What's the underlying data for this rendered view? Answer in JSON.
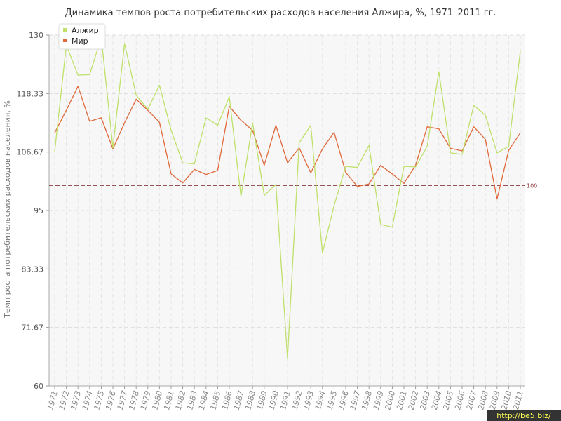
{
  "chart_data": {
    "type": "line",
    "title": "Динамика темпов роста потребительских расходов населения Алжира, %, 1971–2011 гг.",
    "ylabel": "Темп роста потребительских расходов населения, %",
    "xlabel": "",
    "ylim": [
      60,
      130
    ],
    "yticks": [
      "130",
      "118.33",
      "106.67",
      "95",
      "83.33",
      "71.67",
      "60"
    ],
    "ytick_values": [
      130,
      118.33,
      106.67,
      95,
      83.33,
      71.67,
      60
    ],
    "x": [
      "1971",
      "1972",
      "1973",
      "1974",
      "1975",
      "1976",
      "1977",
      "1978",
      "1979",
      "1980",
      "1981",
      "1982",
      "1983",
      "1984",
      "1985",
      "1986",
      "1987",
      "1988",
      "1989",
      "1990",
      "1991",
      "1992",
      "1993",
      "1994",
      "1995",
      "1996",
      "1997",
      "1998",
      "1999",
      "2000",
      "2001",
      "2002",
      "2003",
      "2004",
      "2005",
      "2006",
      "2007",
      "2008",
      "2009",
      "2010",
      "2011"
    ],
    "series": [
      {
        "name": "Алжир",
        "color": "#bfe06a",
        "values": [
          106.8,
          128.0,
          122.0,
          122.1,
          129.5,
          107.5,
          128.3,
          118.0,
          115.2,
          120.0,
          111.0,
          104.5,
          104.3,
          113.5,
          112.0,
          117.7,
          97.8,
          112.5,
          98.0,
          100.2,
          65.5,
          108.5,
          112.0,
          86.5,
          96.0,
          103.8,
          103.6,
          108.0,
          92.2,
          91.7,
          103.8,
          103.7,
          107.8,
          122.7,
          106.5,
          106.2,
          116.0,
          114.0,
          106.5,
          107.8,
          126.8
        ]
      },
      {
        "name": "Мир",
        "color": "#e0683a",
        "values": [
          110.5,
          115.0,
          119.8,
          112.8,
          113.5,
          107.3,
          112.5,
          117.2,
          115.0,
          112.6,
          102.3,
          100.5,
          103.2,
          102.2,
          103.0,
          115.8,
          113.0,
          111.0,
          104.0,
          112.0,
          104.5,
          107.5,
          102.5,
          107.3,
          110.6,
          102.6,
          99.8,
          100.3,
          104.0,
          102.3,
          100.4,
          104.0,
          111.7,
          111.3,
          107.4,
          106.9,
          111.7,
          109.2,
          97.3,
          107.0,
          110.5
        ]
      }
    ],
    "reference_line": {
      "value": 100,
      "label": "100",
      "color": "#8b3a3a"
    },
    "legend_placement": "top-left",
    "grid": true
  },
  "watermark": "http://be5.biz/"
}
